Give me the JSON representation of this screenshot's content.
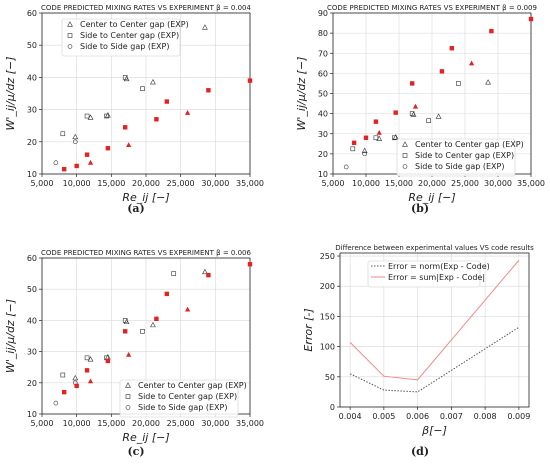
{
  "chart_data": [
    {
      "type": "scatter",
      "title": "CODE PREDICTED MIXING RATES VS EXPERIMENT β = 0.004",
      "xlabel": "Re_ij [−]",
      "ylabel": "W'_ij/μ/dz [−]",
      "caption": "(a)",
      "xlim": [
        5000,
        35000
      ],
      "ylim": [
        10,
        60
      ],
      "xticks": [
        5000,
        10000,
        15000,
        20000,
        25000,
        30000,
        35000
      ],
      "xtick_labels": [
        "5,000",
        "10,000",
        "15,000",
        "20,000",
        "25,000",
        "30,000",
        "35,000"
      ],
      "yticks": [
        10,
        20,
        30,
        40,
        50,
        60
      ],
      "legend_position": "top-left",
      "series": [
        {
          "name": "Center to Center gap (EXP)",
          "marker": "triangle",
          "x": [
            9800,
            12000,
            14500,
            17200,
            21000,
            28500
          ],
          "y": [
            21.5,
            27.5,
            28.2,
            39.5,
            38.5,
            55.5
          ]
        },
        {
          "name": "Side to Center gap (EXP)",
          "marker": "square",
          "x": [
            8000,
            11500,
            14300,
            17000,
            19500,
            24000
          ],
          "y": [
            22.5,
            28,
            28,
            40,
            36.5,
            55
          ]
        },
        {
          "name": "Side to Side gap (EXP)",
          "marker": "circle",
          "x": [
            7000,
            9800
          ],
          "y": [
            13.5,
            20
          ]
        },
        {
          "name": "",
          "marker": "code-square",
          "x": [
            8200,
            10000,
            11500,
            14500,
            17000,
            21500,
            23000,
            29000,
            35000
          ],
          "y": [
            11.5,
            12.5,
            16,
            18,
            24.5,
            27,
            32.5,
            36,
            39
          ]
        },
        {
          "name": "",
          "marker": "code-triangle",
          "x": [
            12000,
            17500,
            26000
          ],
          "y": [
            13.5,
            19,
            29
          ]
        }
      ]
    },
    {
      "type": "scatter",
      "title": "CODE PREDICTED MIXING RATES VS EXPERIMENT β = 0.009",
      "xlabel": "Re_ij [−]",
      "ylabel": "W'_ij/μ/dz [−]",
      "caption": "(b)",
      "xlim": [
        5000,
        35000
      ],
      "ylim": [
        10,
        90
      ],
      "xticks": [
        5000,
        10000,
        15000,
        20000,
        25000,
        30000,
        35000
      ],
      "xtick_labels": [
        "5,000",
        "10,000",
        "15,000",
        "20,000",
        "25,000",
        "30,000",
        "35,000"
      ],
      "yticks": [
        10,
        20,
        30,
        40,
        50,
        60,
        70,
        80,
        90
      ],
      "legend_position": "bottom-right",
      "series": [
        {
          "name": "Center to Center gap (EXP)",
          "marker": "triangle",
          "x": [
            9800,
            12000,
            14500,
            17200,
            21000,
            28500
          ],
          "y": [
            21.5,
            27.5,
            28.2,
            39.5,
            38.5,
            55.5
          ]
        },
        {
          "name": "Side to Center gap (EXP)",
          "marker": "square",
          "x": [
            8000,
            11500,
            14300,
            17000,
            19500,
            24000
          ],
          "y": [
            22.5,
            28,
            28,
            40,
            36.5,
            55
          ]
        },
        {
          "name": "Side to Side gap (EXP)",
          "marker": "circle",
          "x": [
            7000,
            9800
          ],
          "y": [
            13.5,
            20
          ]
        },
        {
          "name": "",
          "marker": "code-square",
          "x": [
            8200,
            10000,
            11500,
            14500,
            17000,
            21500,
            23000,
            29000,
            35000
          ],
          "y": [
            25.5,
            28,
            36,
            40.5,
            55,
            61,
            72.5,
            81,
            87
          ]
        },
        {
          "name": "",
          "marker": "code-triangle",
          "x": [
            12000,
            17500,
            26000
          ],
          "y": [
            30.5,
            43.5,
            65
          ]
        }
      ]
    },
    {
      "type": "scatter",
      "title": "CODE PREDICTED MIXING RATES VS EXPERIMENT β = 0.006",
      "xlabel": "Re_ij [−]",
      "ylabel": "W'_ij/μ/dz [−]",
      "caption": "(c)",
      "xlim": [
        5000,
        35000
      ],
      "ylim": [
        10,
        60
      ],
      "xticks": [
        5000,
        10000,
        15000,
        20000,
        25000,
        30000,
        35000
      ],
      "xtick_labels": [
        "5,000",
        "10,000",
        "15,000",
        "20,000",
        "25,000",
        "30,000",
        "35,000"
      ],
      "yticks": [
        10,
        20,
        30,
        40,
        50,
        60
      ],
      "legend_position": "bottom-right",
      "series": [
        {
          "name": "Center to Center gap (EXP)",
          "marker": "triangle",
          "x": [
            9800,
            12000,
            14500,
            17200,
            21000,
            28500
          ],
          "y": [
            21.5,
            27.5,
            28.2,
            39.5,
            38.5,
            55.5
          ]
        },
        {
          "name": "Side to Center gap (EXP)",
          "marker": "square",
          "x": [
            8000,
            11500,
            14300,
            17000,
            19500,
            24000
          ],
          "y": [
            22.5,
            28,
            28,
            40,
            36.5,
            55
          ]
        },
        {
          "name": "Side to Side gap (EXP)",
          "marker": "circle",
          "x": [
            7000,
            9800
          ],
          "y": [
            13.5,
            20
          ]
        },
        {
          "name": "",
          "marker": "code-square",
          "x": [
            8200,
            10000,
            11500,
            14500,
            17000,
            21500,
            23000,
            29000,
            35000
          ],
          "y": [
            17,
            19,
            24,
            27,
            36.5,
            40.5,
            48.5,
            54.5,
            58
          ]
        },
        {
          "name": "",
          "marker": "code-triangle",
          "x": [
            12000,
            17500,
            26000
          ],
          "y": [
            20.5,
            29,
            43.5
          ]
        }
      ]
    },
    {
      "type": "line",
      "title": "Difference between experimental values VS code results",
      "xlabel": "β[−]",
      "ylabel": "Error [-]",
      "caption": "(d)",
      "xlim": [
        0.0037,
        0.0093
      ],
      "ylim": [
        0,
        255
      ],
      "xticks": [
        0.004,
        0.005,
        0.006,
        0.007,
        0.008,
        0.009
      ],
      "xtick_labels": [
        "0.004",
        "0.005",
        "0.006",
        "0.007",
        "0.008",
        "0.009"
      ],
      "yticks": [
        0,
        50,
        100,
        150,
        200,
        250
      ],
      "legend_position": "top-left",
      "series": [
        {
          "name": "Error = norm(Exp - Code)",
          "color": "#555555",
          "style": "dotted",
          "x": [
            0.004,
            0.005,
            0.006,
            0.009
          ],
          "y": [
            55,
            28,
            25,
            132
          ]
        },
        {
          "name": "Error = sum|Exp - Code|",
          "color": "#f08a8a",
          "style": "solid",
          "x": [
            0.004,
            0.005,
            0.006,
            0.009
          ],
          "y": [
            107,
            51,
            45,
            243
          ]
        }
      ]
    }
  ]
}
